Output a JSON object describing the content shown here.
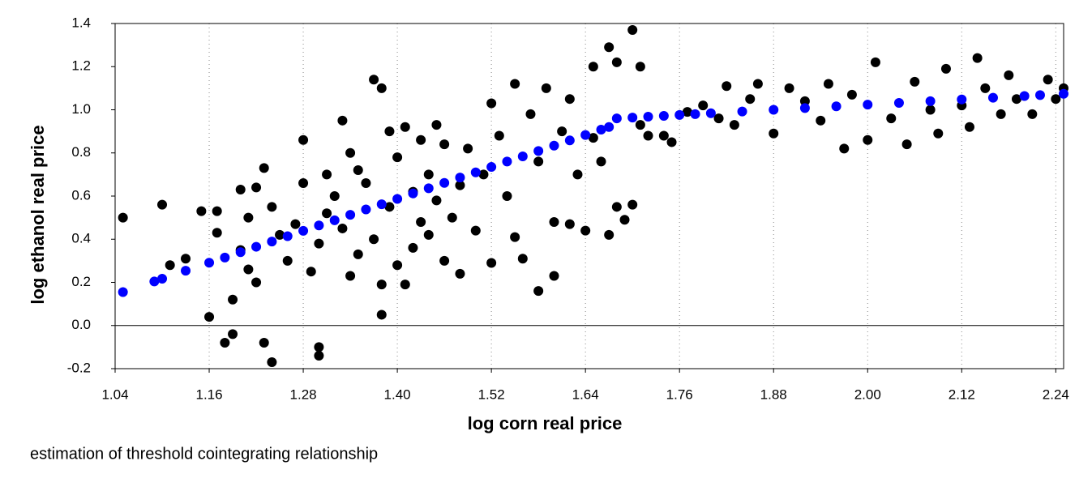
{
  "chart_data": {
    "type": "scatter",
    "xlabel": "log corn real price",
    "ylabel": "log ethanol real price",
    "caption": "estimation of threshold cointegrating relationship",
    "xlim": [
      1.04,
      2.25
    ],
    "ylim": [
      -0.2,
      1.4
    ],
    "xticks": [
      1.04,
      1.16,
      1.28,
      {
        "value": 1.4,
        "label": "1.40"
      },
      1.52,
      1.64,
      1.76,
      1.88,
      {
        "value": 2,
        "label": "2.00"
      },
      2.12,
      2.24
    ],
    "yticks": [
      -0.2,
      {
        "value": 0,
        "label": "0.0"
      },
      0.2,
      0.4,
      0.6,
      0.8,
      {
        "value": 1,
        "label": "1.0"
      },
      1.2,
      1.4
    ],
    "grid": "x",
    "series": [
      {
        "color": "#000000",
        "x": [
          1.05,
          1.1,
          1.11,
          1.13,
          1.15,
          1.16,
          1.17,
          1.17,
          1.18,
          1.19,
          1.19,
          1.2,
          1.2,
          1.21,
          1.21,
          1.22,
          1.22,
          1.23,
          1.23,
          1.24,
          1.24,
          1.25,
          1.26,
          1.27,
          1.28,
          1.28,
          1.29,
          1.3,
          1.3,
          1.3,
          1.31,
          1.31,
          1.32,
          1.33,
          1.33,
          1.34,
          1.34,
          1.35,
          1.35,
          1.36,
          1.37,
          1.37,
          1.38,
          1.38,
          1.38,
          1.39,
          1.39,
          1.4,
          1.4,
          1.41,
          1.41,
          1.42,
          1.42,
          1.43,
          1.43,
          1.44,
          1.44,
          1.45,
          1.45,
          1.46,
          1.46,
          1.47,
          1.48,
          1.48,
          1.49,
          1.5,
          1.51,
          1.52,
          1.52,
          1.53,
          1.54,
          1.55,
          1.55,
          1.56,
          1.57,
          1.58,
          1.58,
          1.59,
          1.6,
          1.6,
          1.61,
          1.62,
          1.62,
          1.63,
          1.64,
          1.65,
          1.65,
          1.66,
          1.67,
          1.67,
          1.68,
          1.68,
          1.69,
          1.7,
          1.7,
          1.71,
          1.71,
          1.72,
          1.74,
          1.75,
          1.77,
          1.79,
          1.81,
          1.82,
          1.83,
          1.85,
          1.86,
          1.88,
          1.9,
          1.92,
          1.94,
          1.95,
          1.97,
          1.98,
          2.0,
          2.01,
          2.03,
          2.05,
          2.06,
          2.08,
          2.09,
          2.1,
          2.12,
          2.13,
          2.14,
          2.15,
          2.17,
          2.18,
          2.19,
          2.21,
          2.23,
          2.24,
          2.25
        ],
        "values": [
          0.5,
          0.56,
          0.28,
          0.31,
          0.53,
          0.04,
          0.53,
          0.43,
          -0.08,
          -0.04,
          0.12,
          0.63,
          0.35,
          0.26,
          0.5,
          0.64,
          0.2,
          0.73,
          -0.08,
          -0.17,
          0.55,
          0.42,
          0.3,
          0.47,
          0.86,
          0.66,
          0.25,
          0.38,
          -0.1,
          -0.14,
          0.7,
          0.52,
          0.6,
          0.95,
          0.45,
          0.8,
          0.23,
          0.33,
          0.72,
          0.66,
          1.14,
          0.4,
          1.1,
          0.05,
          0.19,
          0.9,
          0.55,
          0.78,
          0.28,
          0.19,
          0.92,
          0.62,
          0.36,
          0.86,
          0.48,
          0.7,
          0.42,
          0.93,
          0.58,
          0.3,
          0.84,
          0.5,
          0.65,
          0.24,
          0.82,
          0.44,
          0.7,
          1.03,
          0.29,
          0.88,
          0.6,
          0.41,
          1.12,
          0.31,
          0.98,
          0.76,
          0.16,
          1.1,
          0.48,
          0.23,
          0.9,
          0.47,
          1.05,
          0.7,
          0.44,
          1.2,
          0.87,
          0.76,
          1.29,
          0.42,
          0.55,
          1.22,
          0.49,
          1.37,
          0.56,
          1.2,
          0.93,
          0.88,
          0.88,
          0.85,
          0.99,
          1.02,
          0.96,
          1.11,
          0.93,
          1.05,
          1.12,
          0.89,
          1.1,
          1.04,
          0.95,
          1.12,
          0.82,
          1.07,
          0.86,
          1.22,
          0.96,
          0.84,
          1.13,
          1.0,
          0.89,
          1.19,
          1.02,
          0.92,
          1.24,
          1.1,
          0.98,
          1.16,
          1.05,
          0.98,
          1.14,
          1.05,
          1.1
        ]
      },
      {
        "color": "#0000ff",
        "x": [
          1.05,
          1.09,
          1.1,
          1.13,
          1.16,
          1.18,
          1.2,
          1.22,
          1.24,
          1.26,
          1.28,
          1.3,
          1.32,
          1.34,
          1.36,
          1.38,
          1.4,
          1.42,
          1.44,
          1.46,
          1.48,
          1.5,
          1.52,
          1.54,
          1.56,
          1.58,
          1.6,
          1.62,
          1.64,
          1.66,
          1.67,
          1.68,
          1.7,
          1.72,
          1.74,
          1.76,
          1.78,
          1.8,
          1.84,
          1.88,
          1.92,
          1.96,
          2.0,
          2.04,
          2.08,
          2.12,
          2.16,
          2.2,
          2.22,
          2.25
        ],
        "values": [
          0.155,
          0.204,
          0.217,
          0.254,
          0.291,
          0.315,
          0.34,
          0.365,
          0.389,
          0.414,
          0.439,
          0.464,
          0.488,
          0.513,
          0.538,
          0.562,
          0.587,
          0.612,
          0.636,
          0.661,
          0.686,
          0.71,
          0.735,
          0.76,
          0.784,
          0.809,
          0.834,
          0.858,
          0.883,
          0.908,
          0.92,
          0.96,
          0.964,
          0.968,
          0.972,
          0.976,
          0.98,
          0.984,
          0.992,
          1.0,
          1.008,
          1.016,
          1.024,
          1.032,
          1.04,
          1.048,
          1.056,
          1.064,
          1.068,
          1.074
        ]
      }
    ]
  }
}
